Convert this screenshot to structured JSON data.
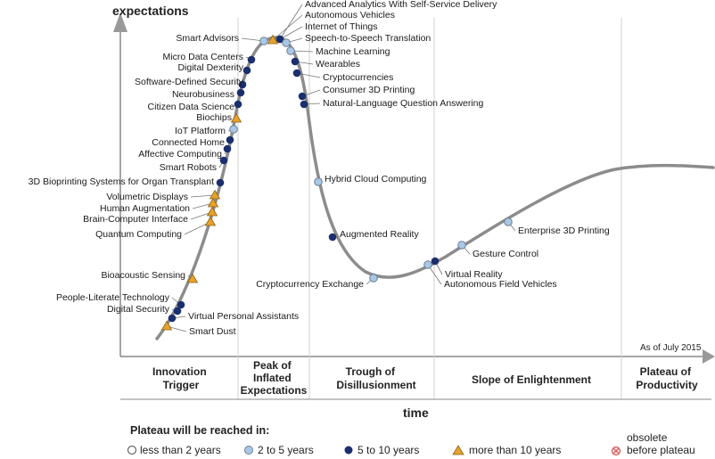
{
  "axis": {
    "y_title": "expectations",
    "x_title": "time"
  },
  "as_of": "As of July 2015",
  "phases": [
    {
      "lines": [
        "Innovation",
        "Trigger"
      ]
    },
    {
      "lines": [
        "Peak of",
        "Inflated",
        "Expectations"
      ]
    },
    {
      "lines": [
        "Trough of",
        "Disillusionment"
      ]
    },
    {
      "lines": [
        "Slope of Enlightenment"
      ]
    },
    {
      "lines": [
        "Plateau of",
        "Productivity"
      ]
    }
  ],
  "legend": {
    "title": "Plateau will be reached in:",
    "items": [
      {
        "label": "less than 2 years",
        "symbol": "open-circle"
      },
      {
        "label": "2 to 5 years",
        "symbol": "light-circle"
      },
      {
        "label": "5 to 10 years",
        "symbol": "dark-circle"
      },
      {
        "label": "more than 10 years",
        "symbol": "triangle"
      },
      {
        "label_lines": [
          "obsolete",
          "before plateau"
        ],
        "symbol": "cross-circle"
      }
    ]
  },
  "colors": {
    "curve": "#8c8c8c",
    "dark": "#1b2f6e",
    "light": "#a9c8e6",
    "triangle": "#e8a12a",
    "obsolete": "#d65a5a"
  },
  "technologies": [
    {
      "name": "Advanced Analytics With Self-Service Delivery",
      "plateau": "5 to 10 years"
    },
    {
      "name": "Autonomous Vehicles",
      "plateau": "more than 10 years"
    },
    {
      "name": "Internet of Things",
      "plateau": "5 to 10 years"
    },
    {
      "name": "Smart Advisors",
      "plateau": "2 to 5 years"
    },
    {
      "name": "Speech-to-Speech Translation",
      "plateau": "2 to 5 years"
    },
    {
      "name": "Machine Learning",
      "plateau": "2 to 5 years"
    },
    {
      "name": "Micro Data Centers",
      "plateau": "5 to 10 years"
    },
    {
      "name": "Wearables",
      "plateau": "5 to 10 years"
    },
    {
      "name": "Digital Dexterity",
      "plateau": "5 to 10 years"
    },
    {
      "name": "Cryptocurrencies",
      "plateau": "5 to 10 years"
    },
    {
      "name": "Software-Defined Security",
      "plateau": "5 to 10 years"
    },
    {
      "name": "Consumer 3D Printing",
      "plateau": "5 to 10 years"
    },
    {
      "name": "Neurobusiness",
      "plateau": "5 to 10 years"
    },
    {
      "name": "Natural-Language Question Answering",
      "plateau": "5 to 10 years"
    },
    {
      "name": "Citizen Data Science",
      "plateau": "5 to 10 years"
    },
    {
      "name": "Biochips",
      "plateau": "more than 10 years"
    },
    {
      "name": "IoT Platform",
      "plateau": "2 to 5 years"
    },
    {
      "name": "Connected Home",
      "plateau": "5 to 10 years"
    },
    {
      "name": "Affective  Computing",
      "plateau": "5 to 10 years"
    },
    {
      "name": "Smart Robots",
      "plateau": "5 to 10 years"
    },
    {
      "name": "3D Bioprinting Systems for Organ Transplant",
      "plateau": "5 to 10 years"
    },
    {
      "name": "Hybrid Cloud Computing",
      "plateau": "2 to 5 years"
    },
    {
      "name": "Volumetric Displays",
      "plateau": "more than 10 years"
    },
    {
      "name": "Human Augmentation",
      "plateau": "more than 10 years"
    },
    {
      "name": "Brain-Computer Interface",
      "plateau": "more than 10 years"
    },
    {
      "name": "Quantum Computing",
      "plateau": "more than 10 years"
    },
    {
      "name": "Enterprise 3D Printing",
      "plateau": "2 to 5 years"
    },
    {
      "name": "Augmented Reality",
      "plateau": "5 to 10 years"
    },
    {
      "name": "Gesture Control",
      "plateau": "2 to 5 years"
    },
    {
      "name": "Virtual Reality",
      "plateau": "5 to 10 years"
    },
    {
      "name": "Autonomous Field Vehicles",
      "plateau": "2 to 5 years"
    },
    {
      "name": "Bioacoustic Sensing",
      "plateau": "more than 10 years"
    },
    {
      "name": "Cryptocurrency Exchange",
      "plateau": "2 to 5 years"
    },
    {
      "name": "People-Literate Technology",
      "plateau": "5 to 10 years"
    },
    {
      "name": "Digital Security",
      "plateau": "5 to 10 years"
    },
    {
      "name": "Virtual Personal Assistants",
      "plateau": "5 to 10 years"
    },
    {
      "name": "Smart Dust",
      "plateau": "more than 10 years"
    }
  ]
}
